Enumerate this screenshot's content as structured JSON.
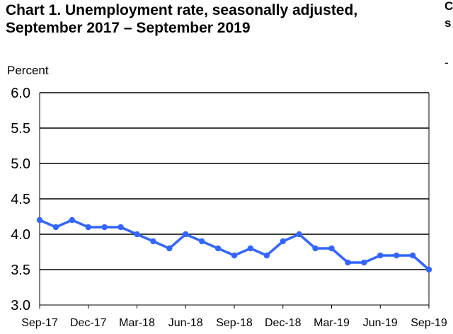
{
  "chart_data": {
    "type": "line",
    "title_lines": [
      "Chart 1. Unemployment rate, seasonally adjusted,",
      "September 2017 – September 2019"
    ],
    "ylabel": "Percent",
    "ylim": [
      3.0,
      6.0
    ],
    "yticks": [
      "3.0",
      "3.5",
      "4.0",
      "4.5",
      "5.0",
      "5.5",
      "6.0"
    ],
    "grid": true,
    "xtick_labels": [
      "Sep-17",
      "Dec-17",
      "Mar-18",
      "Jun-18",
      "Sep-18",
      "Dec-18",
      "Mar-19",
      "Jun-19",
      "Sep-19"
    ],
    "categories": [
      "Sep-17",
      "Oct-17",
      "Nov-17",
      "Dec-17",
      "Jan-18",
      "Feb-18",
      "Mar-18",
      "Apr-18",
      "May-18",
      "Jun-18",
      "Jul-18",
      "Aug-18",
      "Sep-18",
      "Oct-18",
      "Nov-18",
      "Dec-18",
      "Jan-19",
      "Feb-19",
      "Mar-19",
      "Apr-19",
      "May-19",
      "Jun-19",
      "Jul-19",
      "Aug-19",
      "Sep-19"
    ],
    "values": [
      4.2,
      4.1,
      4.2,
      4.1,
      4.1,
      4.1,
      4.0,
      3.9,
      3.8,
      4.0,
      3.9,
      3.8,
      3.7,
      3.8,
      3.7,
      3.9,
      4.0,
      3.8,
      3.8,
      3.6,
      3.6,
      3.7,
      3.7,
      3.7,
      3.5
    ],
    "series_color": "#3366ff",
    "edge_fragments": [
      "C",
      "s",
      "-"
    ]
  }
}
